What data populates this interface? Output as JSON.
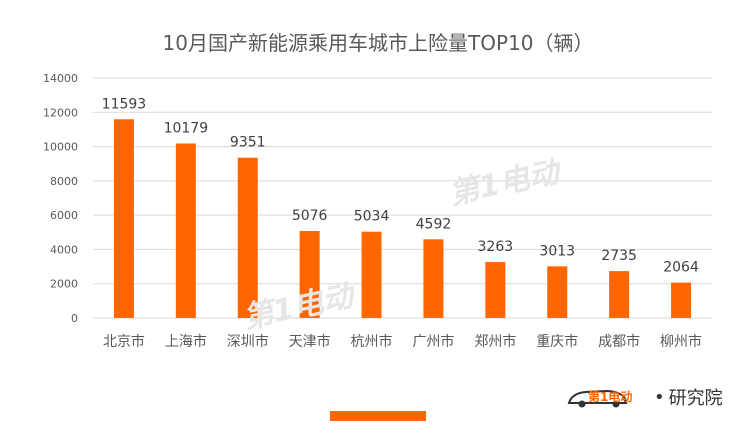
{
  "colors": {
    "bar": "#ff6600",
    "grid": "#d9d9d9",
    "text": "#595959",
    "watermark": "#e6e6e6"
  },
  "watermark": {
    "text": "第1电动"
  },
  "brand": {
    "logo_text": "第1电动",
    "separator": "•",
    "suffix": "研究院"
  },
  "chart_data": {
    "type": "bar",
    "title": "10月国产新能源乘用车城市上险量TOP10（辆）",
    "categories": [
      "北京市",
      "上海市",
      "深圳市",
      "天津市",
      "杭州市",
      "广州市",
      "郑州市",
      "重庆市",
      "成都市",
      "柳州市"
    ],
    "values": [
      11593,
      10179,
      9351,
      5076,
      5034,
      4592,
      3263,
      3013,
      2735,
      2064
    ],
    "yticks": [
      0,
      2000,
      4000,
      6000,
      8000,
      10000,
      12000,
      14000
    ],
    "ylim": [
      0,
      14000
    ],
    "xlabel": "",
    "ylabel": "",
    "grid": true,
    "data_labels": true
  }
}
